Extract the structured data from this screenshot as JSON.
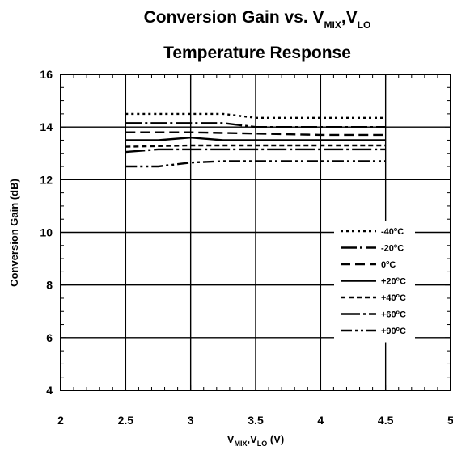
{
  "chart_data": {
    "type": "line",
    "title": {
      "line1_prefix": "Conversion Gain vs. V",
      "line1_sub1": "MIX",
      "line1_mid": ",V",
      "line1_sub2": "LO",
      "line2": "Temperature Response"
    },
    "xlabel": {
      "v1": "V",
      "sub1": "MIX",
      "comma": ",V",
      "sub2": "LO",
      "unit": " (V)"
    },
    "ylabel": "Conversion Gain (dB)",
    "xlim": [
      2,
      5
    ],
    "ylim": [
      4,
      16
    ],
    "xticks": [
      "2",
      "2.5",
      "3",
      "3.5",
      "4",
      "4.5",
      "5"
    ],
    "yticks": [
      "4",
      "6",
      "8",
      "10",
      "12",
      "14",
      "16"
    ],
    "grid": true,
    "legend_position": "right",
    "series": [
      {
        "name": "-40",
        "unit": "C",
        "dash": "3,4",
        "x": [
          2.5,
          3.0,
          3.25,
          3.5,
          4.0,
          4.5
        ],
        "y": [
          14.5,
          14.5,
          14.5,
          14.35,
          14.35,
          14.35
        ]
      },
      {
        "name": "-20",
        "unit": "C",
        "dash": "20,4,3,4",
        "x": [
          2.5,
          3.0,
          3.25,
          3.5,
          4.0,
          4.5
        ],
        "y": [
          14.15,
          14.15,
          14.15,
          14.0,
          14.0,
          14.0
        ]
      },
      {
        "name": "0",
        "unit": "C",
        "dash": "12,6",
        "x": [
          2.5,
          3.0,
          3.5,
          4.0,
          4.5
        ],
        "y": [
          13.8,
          13.8,
          13.75,
          13.7,
          13.7
        ]
      },
      {
        "name": "+20",
        "unit": "C",
        "dash": "",
        "x": [
          2.5,
          2.75,
          3.0,
          3.25,
          3.5,
          4.0,
          4.5
        ],
        "y": [
          13.5,
          13.5,
          13.6,
          13.5,
          13.5,
          13.5,
          13.5
        ]
      },
      {
        "name": "+40",
        "unit": "C",
        "dash": "6,4",
        "x": [
          2.5,
          3.0,
          3.5,
          4.0,
          4.5
        ],
        "y": [
          13.25,
          13.3,
          13.3,
          13.3,
          13.3
        ]
      },
      {
        "name": "+60",
        "unit": "C",
        "dash": "24,4,3,4",
        "x": [
          2.5,
          2.75,
          3.0,
          3.5,
          4.0,
          4.5
        ],
        "y": [
          13.05,
          13.15,
          13.15,
          13.15,
          13.15,
          13.15
        ]
      },
      {
        "name": "+90",
        "unit": "C",
        "dash": "14,4,3,4,3,4",
        "x": [
          2.5,
          2.75,
          3.0,
          3.25,
          3.5,
          4.0,
          4.5
        ],
        "y": [
          12.5,
          12.5,
          12.65,
          12.7,
          12.7,
          12.7,
          12.7
        ]
      }
    ]
  }
}
